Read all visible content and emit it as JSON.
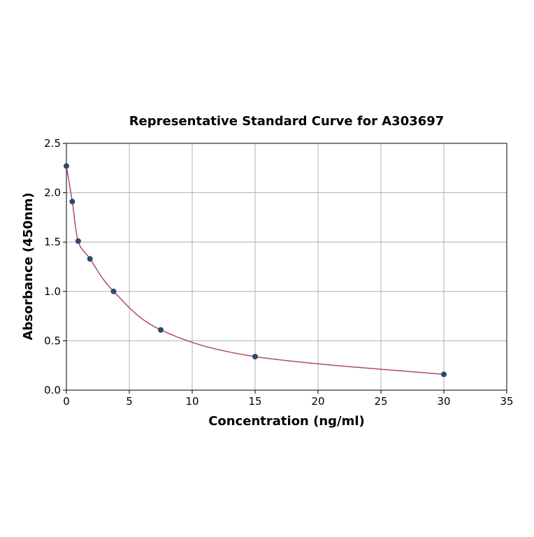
{
  "chart_data": {
    "type": "scatter",
    "title": "Representative Standard Curve for A303697",
    "xlabel": "Concentration (ng/ml)",
    "ylabel": "Absorbance (450nm)",
    "xlim": [
      0,
      35
    ],
    "ylim": [
      0,
      2.5
    ],
    "xticks": [
      "0",
      "5",
      "10",
      "15",
      "20",
      "25",
      "30",
      "35"
    ],
    "yticks": [
      "0.0",
      "0.5",
      "1.0",
      "1.5",
      "2.0",
      "2.5"
    ],
    "grid": true,
    "x": [
      0,
      0.469,
      0.938,
      1.875,
      3.75,
      7.5,
      15,
      30
    ],
    "y": [
      2.27,
      1.91,
      1.51,
      1.33,
      1.0,
      0.61,
      0.34,
      0.16
    ],
    "point_color": "#2e4a6b",
    "curve_color": "#b04a6b"
  }
}
